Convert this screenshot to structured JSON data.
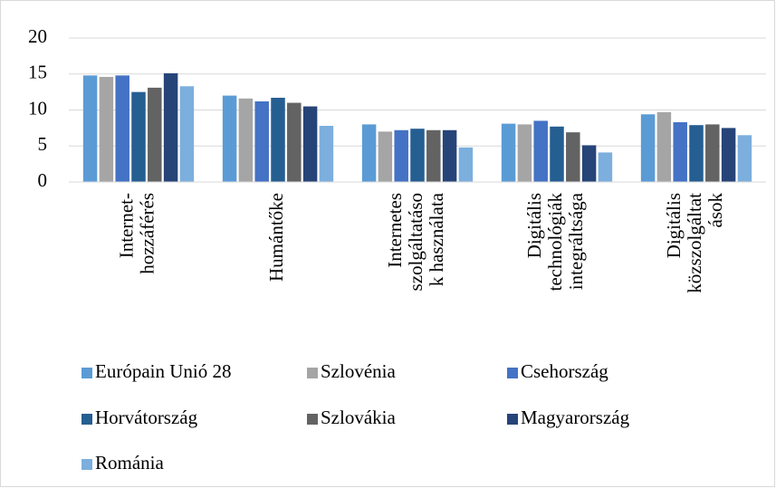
{
  "chart_data": {
    "type": "bar",
    "categories": [
      "Internet-\nhozzáférés",
      "Humántőke",
      "Internetes\nszolgáltatáso\nk használata",
      "Digitális\ntechnológiák\nintegráltsága",
      "Digitális\nközszolgáltat\nások"
    ],
    "series": [
      {
        "name": "Európain Unió 28",
        "color": "#5b9bd5",
        "values": [
          14.8,
          12.0,
          8.0,
          8.1,
          9.4
        ]
      },
      {
        "name": "Szlovénia",
        "color": "#a5a5a5",
        "values": [
          14.6,
          11.6,
          7.0,
          8.0,
          9.7
        ]
      },
      {
        "name": "Csehország",
        "color": "#4472c4",
        "values": [
          14.8,
          11.2,
          7.2,
          8.5,
          8.3
        ]
      },
      {
        "name": "Horvátország",
        "color": "#255e91",
        "values": [
          12.5,
          11.7,
          7.4,
          7.7,
          7.9
        ]
      },
      {
        "name": "Szlovákia",
        "color": "#636363",
        "values": [
          13.1,
          11.0,
          7.2,
          6.9,
          8.0
        ]
      },
      {
        "name": "Magyarország",
        "color": "#264478",
        "values": [
          15.1,
          10.5,
          7.2,
          5.1,
          7.5
        ]
      },
      {
        "name": "Románia",
        "color": "#7cafdd",
        "values": [
          13.3,
          7.8,
          4.8,
          4.1,
          6.5
        ]
      }
    ],
    "ylim": [
      0,
      20
    ],
    "yticks": [
      0,
      5,
      10,
      15,
      20
    ],
    "grid": true,
    "legend": "bottom"
  }
}
